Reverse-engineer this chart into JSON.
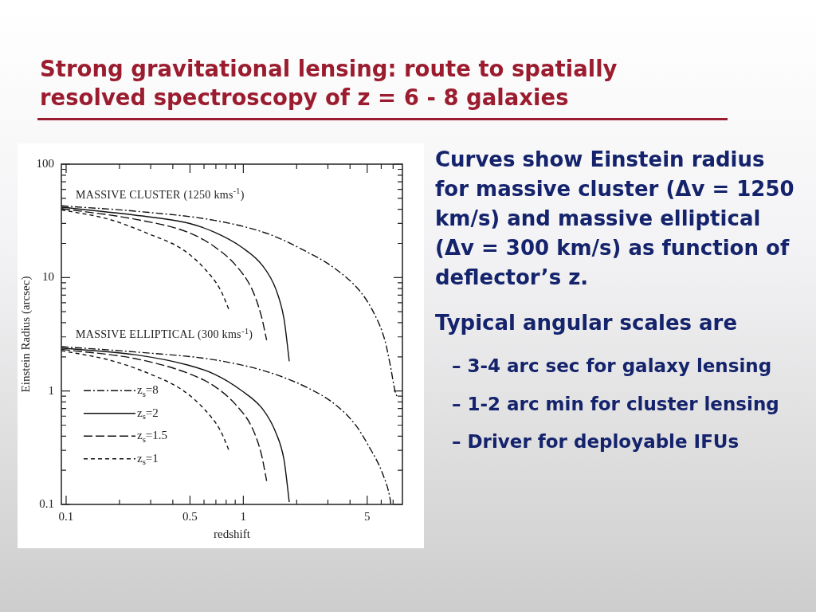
{
  "chart_data": {
    "type": "line",
    "title": "Strong gravitational lensing: route to spatially resolved spectroscopy of z = 6 - 8 galaxies",
    "xlabel": "redshift",
    "ylabel": "Einstein Radius (arcsec)",
    "log": "xy",
    "marker": "none",
    "legend": "bottom left",
    "xlim": [
      0.094,
      7.9
    ],
    "xticks": [
      0.1,
      {
        "value": 0.2,
        "label": null
      },
      {
        "value": 0.3,
        "label": null
      },
      {
        "value": 0.4,
        "label": null
      },
      0.5,
      {
        "value": 0.6,
        "label": null
      },
      {
        "value": 0.7,
        "label": null
      },
      {
        "value": 0.8,
        "label": null
      },
      {
        "value": 0.9,
        "label": null
      },
      1,
      {
        "value": 2,
        "label": null
      },
      {
        "value": 3,
        "label": null
      },
      {
        "value": 4,
        "label": null
      },
      5,
      {
        "value": 6,
        "label": null
      },
      {
        "value": 7,
        "label": null
      }
    ],
    "ylim": [
      0.1,
      100
    ],
    "yticks": [
      0.1,
      {
        "value": 0.2,
        "label": null
      },
      {
        "value": 0.3,
        "label": null
      },
      {
        "value": 0.4,
        "label": null
      },
      {
        "value": 0.5,
        "label": null
      },
      {
        "value": 0.6,
        "label": null
      },
      {
        "value": 0.7,
        "label": null
      },
      {
        "value": 0.8,
        "label": null
      },
      {
        "value": 0.9,
        "label": null
      },
      1,
      {
        "value": 2,
        "label": null
      },
      {
        "value": 3,
        "label": null
      },
      {
        "value": 4,
        "label": null
      },
      {
        "value": 5,
        "label": null
      },
      {
        "value": 6,
        "label": null
      },
      {
        "value": 7,
        "label": null
      },
      {
        "value": 8,
        "label": null
      },
      {
        "value": 9,
        "label": null
      },
      10,
      {
        "value": 20,
        "label": null
      },
      {
        "value": 30,
        "label": null
      },
      {
        "value": 40,
        "label": null
      },
      {
        "value": 50,
        "label": null
      },
      {
        "value": 60,
        "label": null
      },
      {
        "value": 70,
        "label": null
      },
      {
        "value": 80,
        "label": null
      },
      {
        "value": 90,
        "label": null
      },
      100
    ],
    "annotations": [
      "MASSIVE CLUSTER (1250 kms$^{-1}$)",
      "MASSIVE ELLIPTICAL (300 kms$^{-1}$)",
      "Curves show Einstein radius for massive cluster (Δv = 1250 km/s) and massive elliptical (Δv = 300 km/s) as function of deflector’s z.",
      "Typical angular scales are",
      "– 3-4 arc sec for galaxy lensing",
      "– 1-2 arc min for cluster lensing",
      "– Driver for deployable IFUs"
    ],
    "series": [
      {
        "name": "z$_{s}$=8",
        "color": "#111111",
        "line_style": "dashdot",
        "x": [
          0.094,
          0.245,
          0.691,
          1.38,
          2.31,
          3.27,
          4.61,
          5.48,
          6.29,
          6.74,
          7.2,
          7.4
        ],
        "values": [
          42.9,
          38.5,
          31.9,
          24.3,
          16.7,
          12.1,
          7.4,
          4.8,
          2.8,
          1.7,
          0.98,
          0.88
        ]
      },
      {
        "name": "z$_{s}$=2",
        "color": "#111111",
        "line_style": "solid",
        "x": [
          0.094,
          0.245,
          0.489,
          0.691,
          0.975,
          1.286,
          1.529,
          1.696,
          1.816
        ],
        "values": [
          41.7,
          35.5,
          30.2,
          25,
          18.6,
          12.7,
          7.84,
          4.33,
          1.83
        ]
      },
      {
        "name": "z$_{s}$=1.5",
        "color": "#111111",
        "line_style": "longdash",
        "x": [
          0.094,
          0.245,
          0.489,
          0.691,
          0.911,
          1.121,
          1.264,
          1.354
        ],
        "values": [
          40.6,
          32.7,
          25,
          18.6,
          12.7,
          7.84,
          4.57,
          2.81
        ]
      },
      {
        "name": "z$_{s}$=1",
        "color": "#111111",
        "line_style": "dashed",
        "x": [
          0.094,
          0.174,
          0.292,
          0.457,
          0.602,
          0.741,
          0.835
        ],
        "values": [
          39.6,
          32.7,
          24.3,
          17.6,
          12.06,
          7.84,
          5.09
        ]
      },
      {
        "color": "#111111",
        "line_style": "dashdot",
        "x": [
          0.094,
          0.245,
          0.691,
          1.379,
          2.313,
          3.266,
          4.3,
          5.11,
          6.08,
          6.74,
          6.8
        ],
        "values": [
          2.46,
          2.21,
          1.88,
          1.47,
          1.065,
          0.77,
          0.501,
          0.325,
          0.19,
          0.111,
          0.1
        ]
      },
      {
        "color": "#111111",
        "line_style": "solid",
        "x": [
          0.094,
          0.245,
          0.489,
          0.691,
          0.975,
          1.286,
          1.529,
          1.696,
          1.816
        ],
        "values": [
          2.39,
          2.09,
          1.69,
          1.4,
          1.01,
          0.692,
          0.426,
          0.248,
          0.105
        ]
      },
      {
        "color": "#111111",
        "line_style": "longdash",
        "x": [
          0.094,
          0.245,
          0.489,
          0.691,
          0.911,
          1.121,
          1.264,
          1.354
        ],
        "values": [
          2.33,
          1.93,
          1.43,
          1.095,
          0.751,
          0.474,
          0.277,
          0.161
        ]
      },
      {
        "color": "#111111",
        "line_style": "dashed",
        "x": [
          0.094,
          0.174,
          0.292,
          0.457,
          0.602,
          0.741,
          0.835
        ],
        "values": [
          2.27,
          1.88,
          1.43,
          1.01,
          0.692,
          0.45,
          0.292
        ]
      }
    ]
  }
}
